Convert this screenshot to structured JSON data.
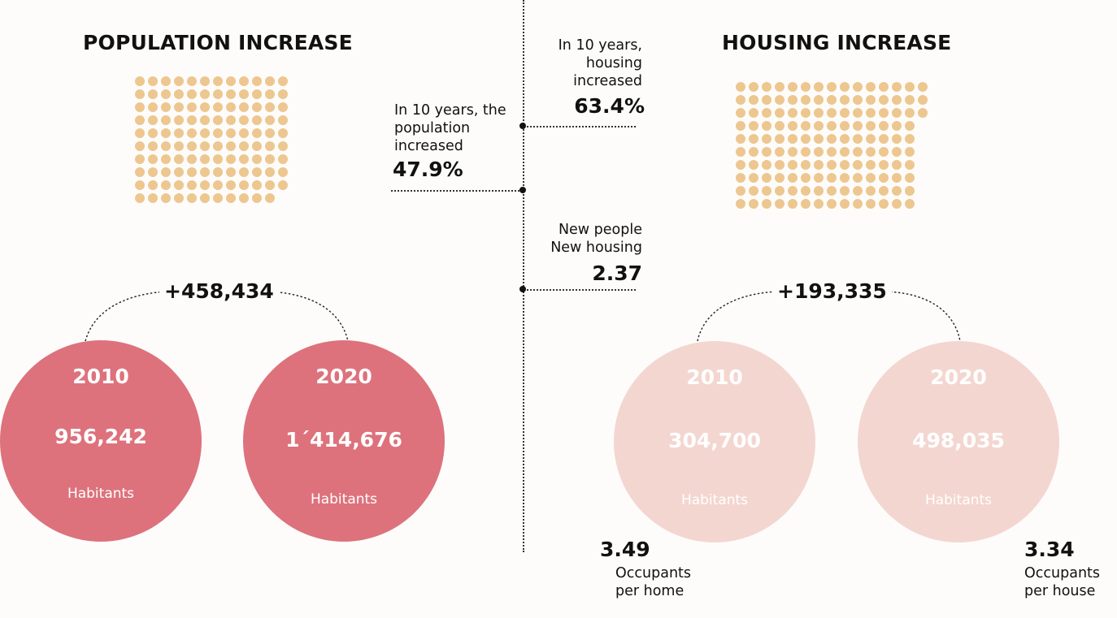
{
  "population": {
    "title": "POPULATION INCREASE",
    "increase_note": "In 10 years, the\npopulation\nincreased",
    "increase_pct": "47.9%",
    "delta": "+458,434",
    "circles": [
      {
        "year": "2010",
        "value": "956,242",
        "unit": "Habitants"
      },
      {
        "year": "2020",
        "value": "1´414,676",
        "unit": "Habitants"
      }
    ],
    "dot_color": "#edc78f",
    "circle_color": "#dd727c"
  },
  "housing": {
    "title": "HOUSING INCREASE",
    "increase_note": "In 10 years,\nhousing\nincreased",
    "increase_pct": "63.4%",
    "delta": "+193,335",
    "circles": [
      {
        "year": "2010",
        "value": "304,700",
        "unit": "Habitants"
      },
      {
        "year": "2020",
        "value": "498,035",
        "unit": "Habitants"
      }
    ],
    "occupancy": [
      {
        "value": "3.49",
        "label": "Occupants\nper home"
      },
      {
        "value": "3.34",
        "label": "Occupants\nper house"
      }
    ],
    "circle_color": "#f4d6d0"
  },
  "ratio": {
    "label": "New people\nNew housing",
    "value": "2.37"
  }
}
